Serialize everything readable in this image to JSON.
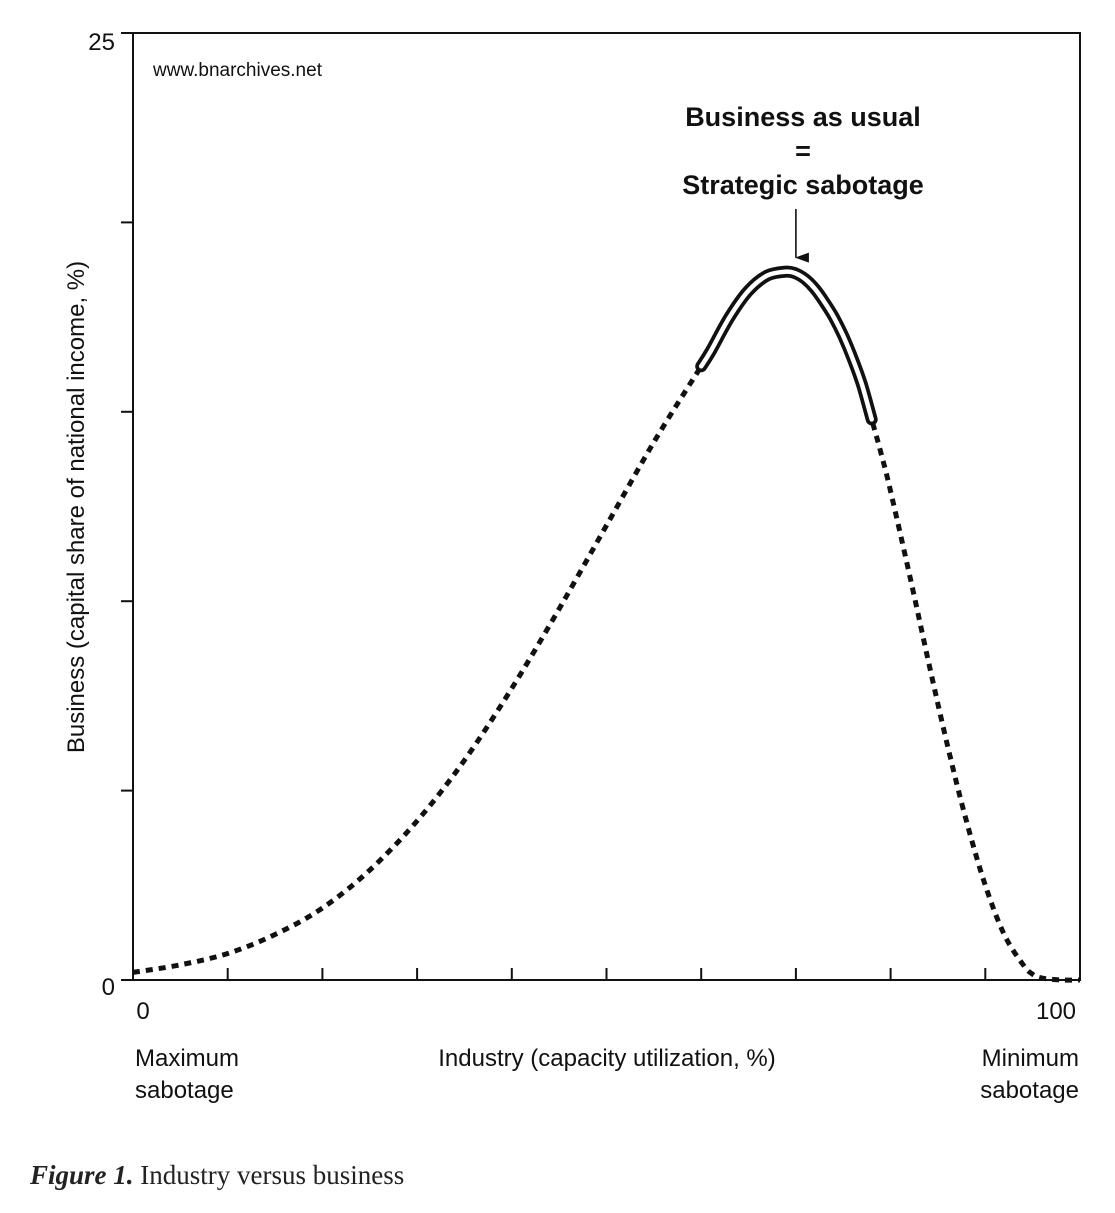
{
  "chart_data": {
    "type": "line",
    "watermark": "www.bnarchives.net",
    "xlabel": "Industry (capacity utilization, %)",
    "ylabel": "Business (capital share of national income, %)",
    "xlim": [
      0,
      100
    ],
    "ylim": [
      0,
      25
    ],
    "x_tick_labels": [
      "0",
      "100"
    ],
    "y_tick_labels": [
      "0",
      "25"
    ],
    "x_ticks": [
      0,
      10,
      20,
      30,
      40,
      50,
      60,
      70,
      80,
      90,
      100
    ],
    "y_ticks": [
      0,
      5,
      10,
      15,
      20,
      25
    ],
    "x_end_labels": {
      "left": [
        "Maximum",
        "sabotage"
      ],
      "right": [
        "Minimum",
        "sabotage"
      ]
    },
    "series": [
      {
        "style": "dashed",
        "x": [
          0,
          5,
          10,
          15,
          20,
          25,
          30,
          35,
          40,
          45,
          50,
          55,
          60,
          61,
          63,
          65,
          67,
          69,
          70,
          71,
          72,
          73,
          74,
          75,
          76,
          77,
          78,
          79,
          80,
          82,
          84,
          86,
          88,
          90,
          92,
          94,
          95,
          96,
          98,
          100
        ],
        "y": [
          0.2,
          0.4,
          0.7,
          1.2,
          1.9,
          2.9,
          4.2,
          5.8,
          7.7,
          9.8,
          12.0,
          14.2,
          16.2,
          16.6,
          17.5,
          18.2,
          18.6,
          18.7,
          18.65,
          18.5,
          18.25,
          17.9,
          17.5,
          17.0,
          16.4,
          15.7,
          14.8,
          13.9,
          12.9,
          10.7,
          8.4,
          6.2,
          4.2,
          2.5,
          1.2,
          0.4,
          0.15,
          0.05,
          0.0,
          0.0
        ]
      },
      {
        "style": "double-solid",
        "x": [
          60,
          61,
          63,
          65,
          67,
          69,
          70,
          71,
          72,
          73,
          74,
          75,
          76,
          77,
          78
        ],
        "y": [
          16.2,
          16.6,
          17.5,
          18.2,
          18.6,
          18.7,
          18.65,
          18.5,
          18.25,
          17.9,
          17.5,
          17.0,
          16.4,
          15.7,
          14.8
        ]
      }
    ],
    "annotation": {
      "lines": [
        "Business as usual",
        "=",
        "Strategic sabotage"
      ],
      "x": 70,
      "arrow_target_y": 18.7
    }
  },
  "caption": {
    "label": "Figure 1.",
    "text": "Industry versus business"
  }
}
